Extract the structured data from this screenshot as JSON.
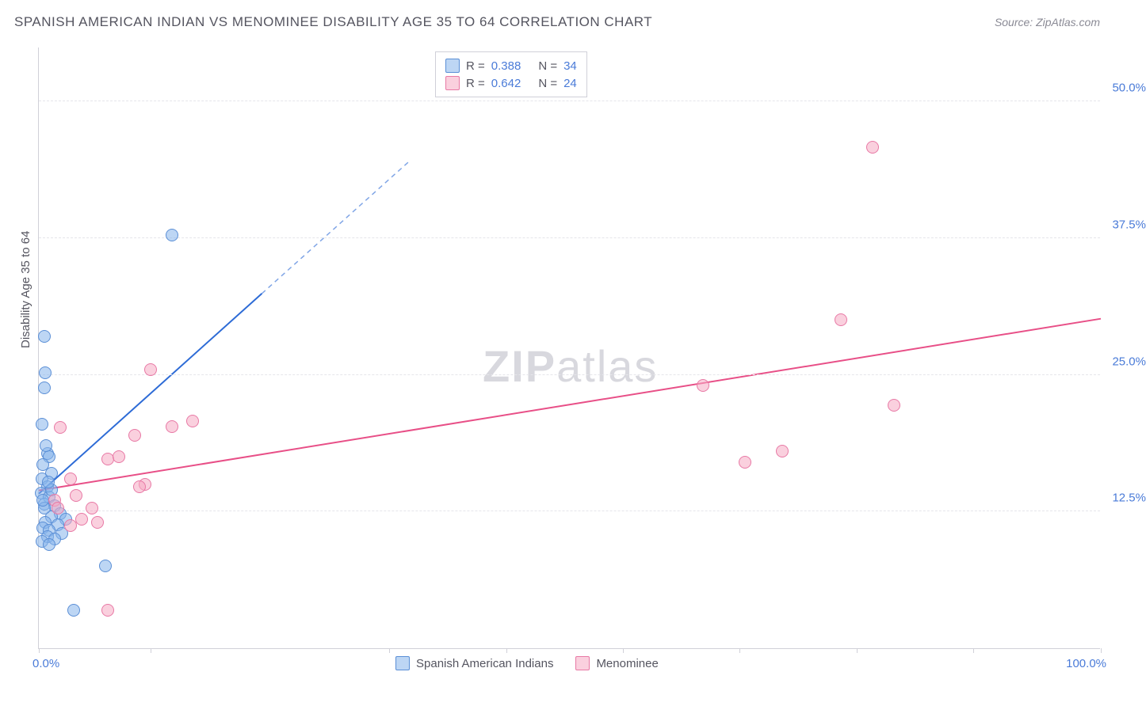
{
  "title": "SPANISH AMERICAN INDIAN VS MENOMINEE DISABILITY AGE 35 TO 64 CORRELATION CHART",
  "source": "Source: ZipAtlas.com",
  "ylabel": "Disability Age 35 to 64",
  "watermark_a": "ZIP",
  "watermark_b": "atlas",
  "chart": {
    "type": "scatter",
    "xlim": [
      0,
      100
    ],
    "ylim": [
      0,
      55
    ],
    "x_ticks": [
      0,
      10.5,
      33,
      44,
      55,
      66,
      77,
      88,
      100
    ],
    "x_tick_labels": {
      "0": "0.0%",
      "100": "100.0%"
    },
    "y_ticks": [
      12.5,
      25.0,
      37.5,
      50.0
    ],
    "y_tick_labels": [
      "12.5%",
      "25.0%",
      "37.5%",
      "50.0%"
    ],
    "grid_color": "#e5e5ea",
    "background_color": "#ffffff",
    "series": [
      {
        "name": "Spanish American Indians",
        "color_fill": "rgba(135,180,235,0.55)",
        "color_stroke": "#5b8fd6",
        "marker_size": 16,
        "r": 0.388,
        "n": 34,
        "trend": {
          "x1": 0,
          "y1": 14.2,
          "x2": 21,
          "y2": 32.5,
          "color": "#2d6bd6",
          "width": 2,
          "dash_extend": {
            "x2": 35,
            "y2": 44.7
          }
        },
        "points": [
          [
            0.5,
            28.5
          ],
          [
            0.6,
            25.2
          ],
          [
            0.5,
            23.8
          ],
          [
            0.3,
            20.5
          ],
          [
            0.8,
            17.8
          ],
          [
            1.0,
            17.5
          ],
          [
            0.4,
            16.8
          ],
          [
            1.2,
            16.0
          ],
          [
            0.3,
            15.5
          ],
          [
            0.8,
            14.8
          ],
          [
            0.2,
            14.2
          ],
          [
            1.0,
            13.8
          ],
          [
            0.5,
            13.2
          ],
          [
            1.5,
            13.0
          ],
          [
            2.0,
            12.3
          ],
          [
            1.2,
            12.0
          ],
          [
            2.5,
            11.8
          ],
          [
            0.6,
            11.5
          ],
          [
            1.8,
            11.3
          ],
          [
            0.4,
            11.0
          ],
          [
            1.0,
            10.8
          ],
          [
            2.2,
            10.5
          ],
          [
            0.8,
            10.2
          ],
          [
            1.5,
            10.0
          ],
          [
            0.3,
            9.8
          ],
          [
            1.0,
            9.5
          ],
          [
            6.3,
            7.5
          ],
          [
            3.3,
            3.5
          ],
          [
            12.5,
            37.8
          ],
          [
            0.5,
            12.8
          ],
          [
            1.2,
            14.5
          ],
          [
            0.7,
            18.5
          ],
          [
            0.4,
            13.5
          ],
          [
            0.9,
            15.2
          ]
        ]
      },
      {
        "name": "Menominee",
        "color_fill": "rgba(245,170,195,0.55)",
        "color_stroke": "#e879a5",
        "marker_size": 16,
        "r": 0.642,
        "n": 24,
        "trend": {
          "x1": 0,
          "y1": 14.5,
          "x2": 100,
          "y2": 30.2,
          "color": "#e84f87",
          "width": 2
        },
        "points": [
          [
            2.0,
            20.2
          ],
          [
            10.5,
            25.5
          ],
          [
            9.0,
            19.5
          ],
          [
            12.5,
            20.3
          ],
          [
            14.5,
            20.8
          ],
          [
            6.5,
            17.3
          ],
          [
            7.5,
            17.5
          ],
          [
            10.0,
            15.0
          ],
          [
            3.0,
            15.5
          ],
          [
            9.5,
            14.8
          ],
          [
            3.5,
            14.0
          ],
          [
            1.5,
            13.5
          ],
          [
            5.0,
            12.8
          ],
          [
            4.0,
            11.8
          ],
          [
            5.5,
            11.5
          ],
          [
            3.0,
            11.2
          ],
          [
            6.5,
            3.5
          ],
          [
            62.5,
            24.0
          ],
          [
            66.5,
            17.0
          ],
          [
            70.0,
            18.0
          ],
          [
            75.5,
            30.0
          ],
          [
            80.5,
            22.2
          ],
          [
            78.5,
            45.8
          ],
          [
            1.8,
            12.8
          ]
        ]
      }
    ]
  },
  "legend_top": [
    {
      "swatch": "blue",
      "r_label": "R =",
      "r": "0.388",
      "n_label": "N =",
      "n": "34"
    },
    {
      "swatch": "pink",
      "r_label": "R =",
      "r": "0.642",
      "n_label": "N =",
      "n": "24"
    }
  ],
  "legend_bottom": [
    {
      "swatch": "blue",
      "label": "Spanish American Indians"
    },
    {
      "swatch": "pink",
      "label": "Menominee"
    }
  ]
}
